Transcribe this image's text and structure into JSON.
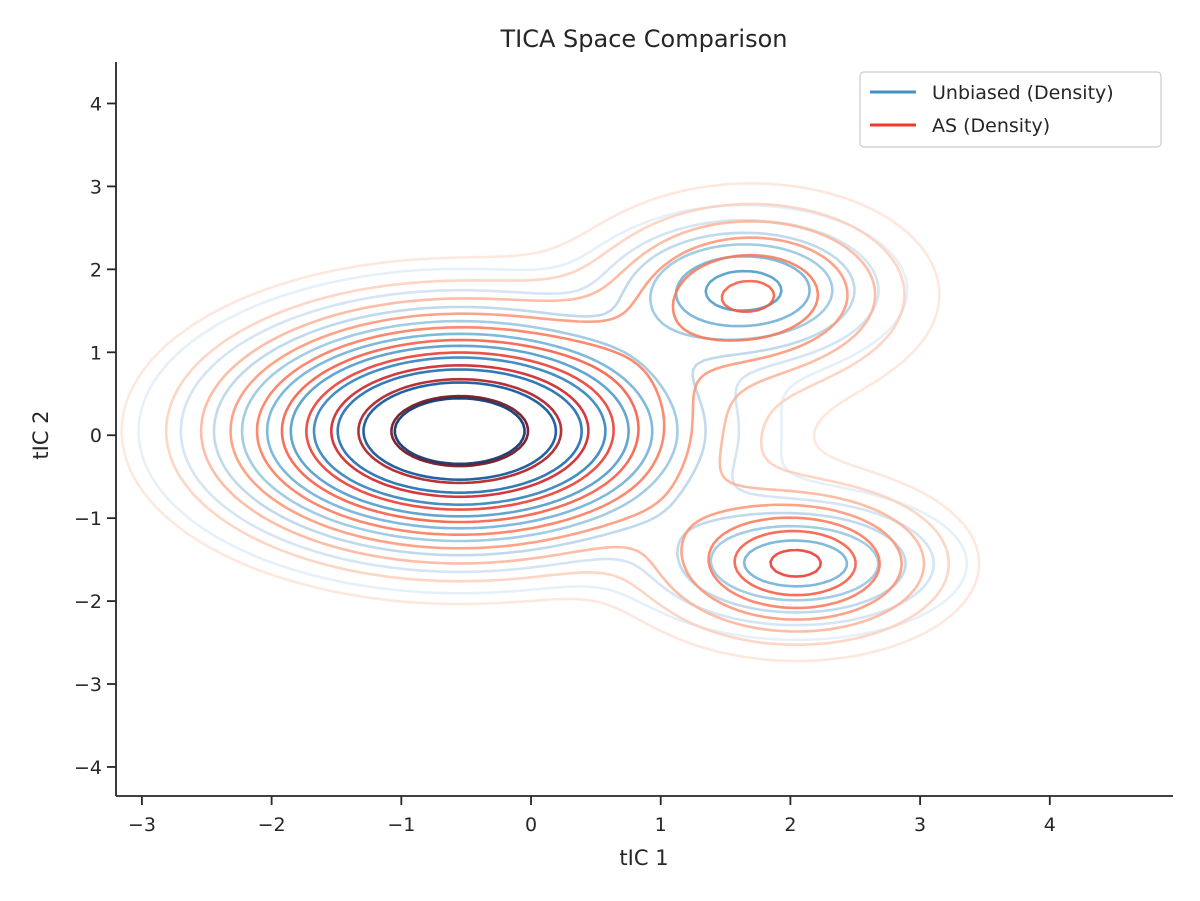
{
  "chart_data": {
    "type": "contour",
    "title": "TICA Space Comparison",
    "xlabel": "tIC 1",
    "ylabel": "tIC 2",
    "xlim": [
      -3.2,
      4.95
    ],
    "ylim": [
      -4.35,
      4.5
    ],
    "xticks": [
      -3,
      -2,
      -1,
      0,
      1,
      2,
      3,
      4
    ],
    "yticks": [
      -4,
      -3,
      -2,
      -1,
      0,
      1,
      2,
      3,
      4
    ],
    "xtick_labels": [
      "−3",
      "−2",
      "−1",
      "0",
      "1",
      "2",
      "3",
      "4"
    ],
    "ytick_labels": [
      "−4",
      "−3",
      "−2",
      "−1",
      "0",
      "1",
      "2",
      "3",
      "4"
    ],
    "grid": false,
    "legend_position": "top-right",
    "series": [
      {
        "name": "Unbiased (Density)",
        "legend_color": "#4292c6",
        "colormap": "Blues",
        "components": [
          {
            "weight": 0.78,
            "center": [
              -0.55,
              0.05
            ],
            "sigma": [
              0.95,
              0.75
            ]
          },
          {
            "weight": 0.12,
            "center": [
              1.65,
              1.75
            ],
            "sigma": [
              0.55,
              0.45
            ]
          },
          {
            "weight": 0.1,
            "center": [
              2.05,
              -1.55
            ],
            "sigma": [
              0.6,
              0.42
            ]
          }
        ]
      },
      {
        "name": "AS (Density)",
        "legend_color": "#ef3b2c",
        "colormap": "Reds",
        "components": [
          {
            "weight": 0.72,
            "center": [
              -0.55,
              0.05
            ],
            "sigma": [
              1.0,
              0.8
            ]
          },
          {
            "weight": 0.14,
            "center": [
              1.7,
              1.7
            ],
            "sigma": [
              0.65,
              0.6
            ]
          },
          {
            "weight": 0.14,
            "center": [
              2.05,
              -1.55
            ],
            "sigma": [
              0.6,
              0.5
            ]
          }
        ]
      }
    ],
    "contour_levels": 10
  }
}
